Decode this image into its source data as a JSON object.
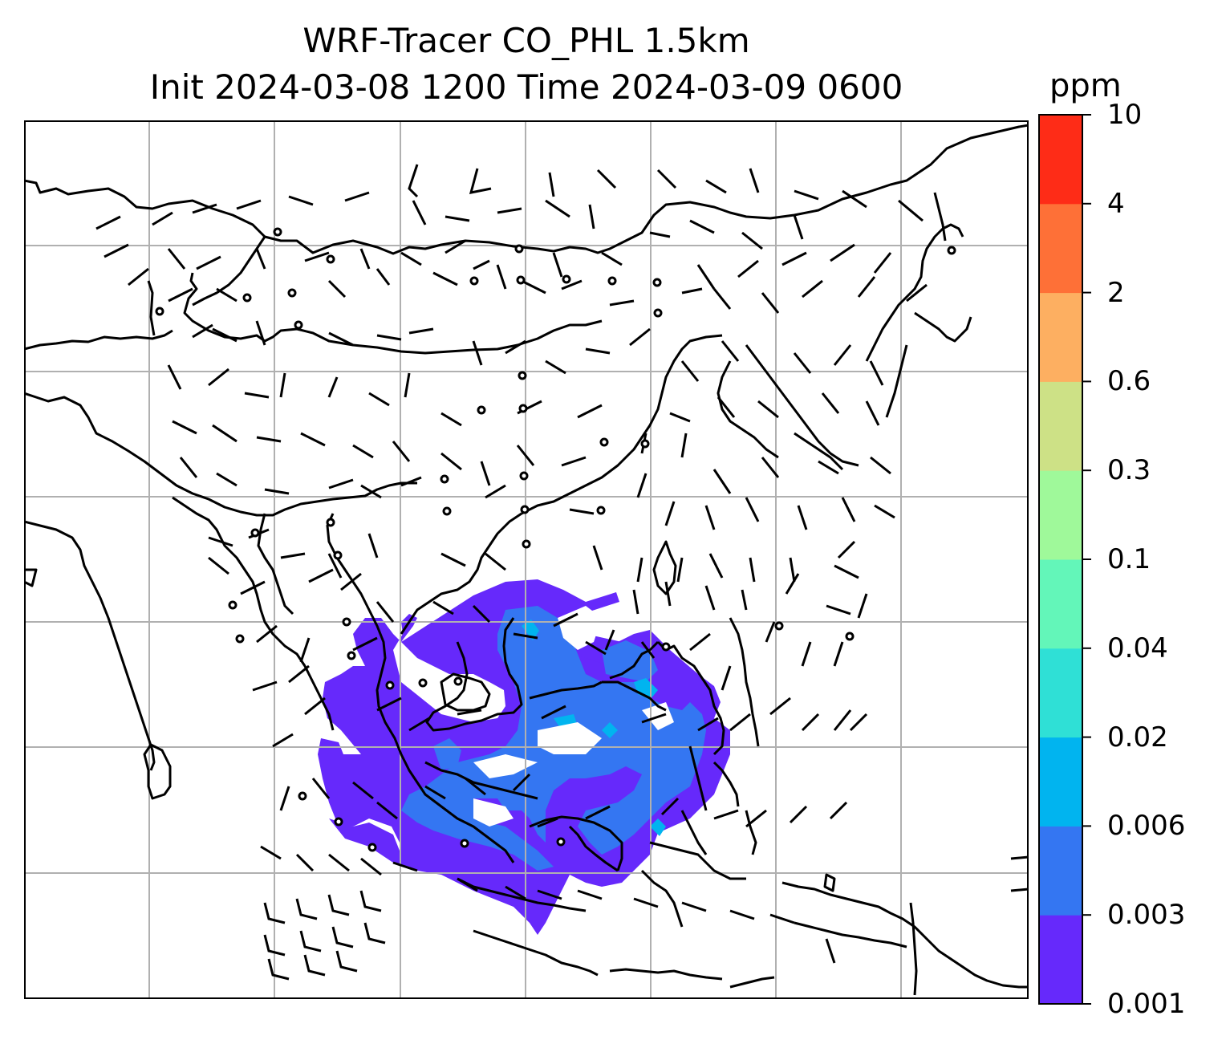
{
  "title_line1": "WRF-Tracer CO_PHL 1.5km",
  "title_line2": "Init 2024-03-08 1200 Time 2024-03-09 0600",
  "colorbar": {
    "units": "ppm",
    "levels": [
      "0.001",
      "0.003",
      "0.006",
      "0.02",
      "0.04",
      "0.1",
      "0.3",
      "0.6",
      "2",
      "4",
      "10"
    ],
    "colors": [
      "#6629fb",
      "#3476f2",
      "#01b4ef",
      "#2fe0d6",
      "#63f6b9",
      "#9ff99a",
      "#cde186",
      "#fdaf61",
      "#fe7037",
      "#fe2c17"
    ]
  },
  "map": {
    "gridlines": true,
    "coastline_color": "#000000",
    "tracer_plume_colors": [
      "#6629fb",
      "#3476f2",
      "#01b4ef"
    ],
    "wind_barbs": true
  }
}
